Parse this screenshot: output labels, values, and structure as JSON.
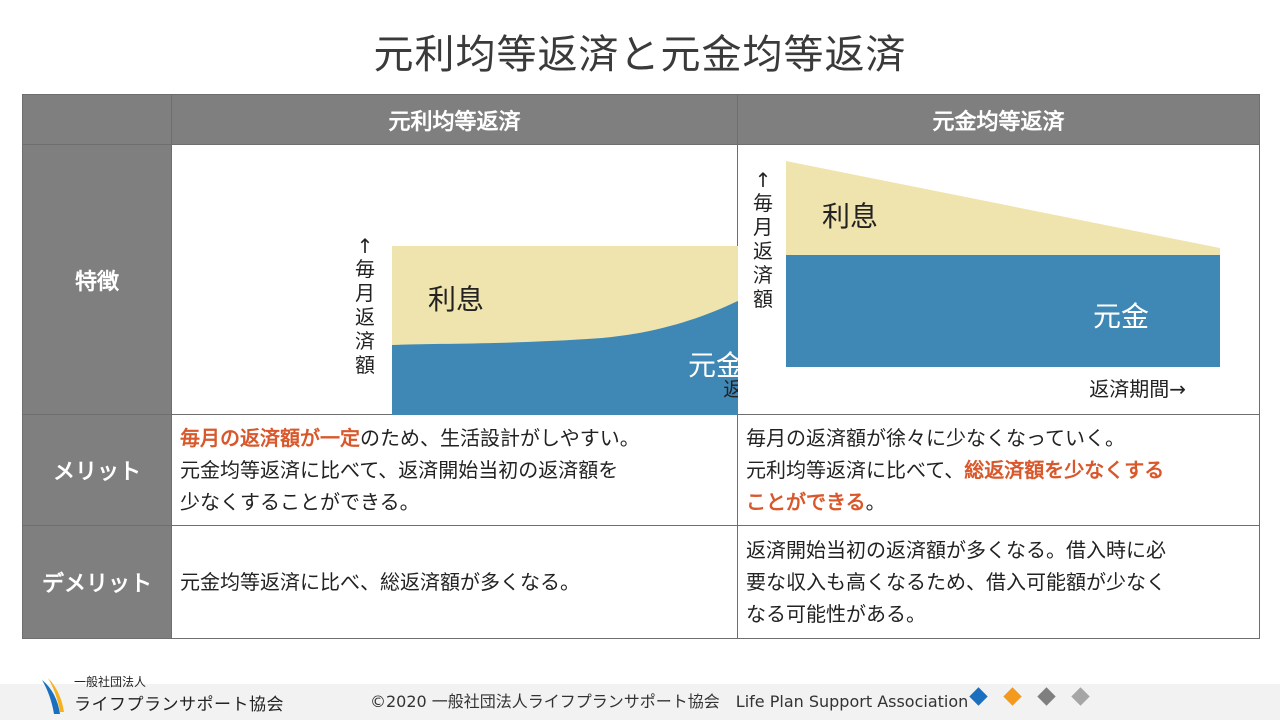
{
  "title": "元利均等返済と元金均等返済",
  "table": {
    "headers": [
      "元利均等返済",
      "元金均等返済"
    ],
    "row_labels": [
      "特徴",
      "メリット",
      "デメリット"
    ],
    "charts": {
      "equal_payment": {
        "ylabel_chars": [
          "↑",
          "毎",
          "月",
          "返",
          "済",
          "額"
        ],
        "interest_label": "利息",
        "principal_label": "元金",
        "xlabel": "返済期間→"
      },
      "equal_principal": {
        "ylabel_chars": [
          "↑",
          "毎",
          "月",
          "返",
          "済",
          "額"
        ],
        "interest_label": "利息",
        "principal_label": "元金",
        "xlabel": "返済期間→"
      }
    },
    "merit": {
      "equal_payment": {
        "line1_highlight": "毎月の返済額が一定",
        "line1_rest": "のため、生活設計がしやすい。",
        "line2": "元金均等返済に比べて、返済開始当初の返済額を",
        "line3": "少なくすることができる。"
      },
      "equal_principal": {
        "line1": "毎月の返済額が徐々に少なくなっていく。",
        "line2_prefix": "元利均等返済に比べて、",
        "line2_highlight": "総返済額を少なくする",
        "line3_highlight": "ことができる",
        "line3_rest": "。"
      }
    },
    "demerit": {
      "equal_payment": "元金均等返済に比べ、総返済額が多くなる。",
      "equal_principal": {
        "line1": "返済開始当初の返済額が多くなる。借入時に必",
        "line2": "要な収入も高くなるため、借入可能額が少なく",
        "line3": "なる可能性がある。"
      }
    }
  },
  "footer": {
    "copyright": "©2020 一般社団法人ライフプランサポート協会　Life Plan Support Association",
    "logo_small": "一般社団法人",
    "logo_big": "ライフプランサポート協会"
  },
  "colors": {
    "header_gray": "#7f7f7f",
    "interest_fill": "#f0e4ae",
    "principal_fill": "#3f88b5",
    "highlight": "#d9582b",
    "diamonds": [
      "#1a6fbf",
      "#f39a1e",
      "#7f7f7f",
      "#a6a6a6"
    ]
  }
}
